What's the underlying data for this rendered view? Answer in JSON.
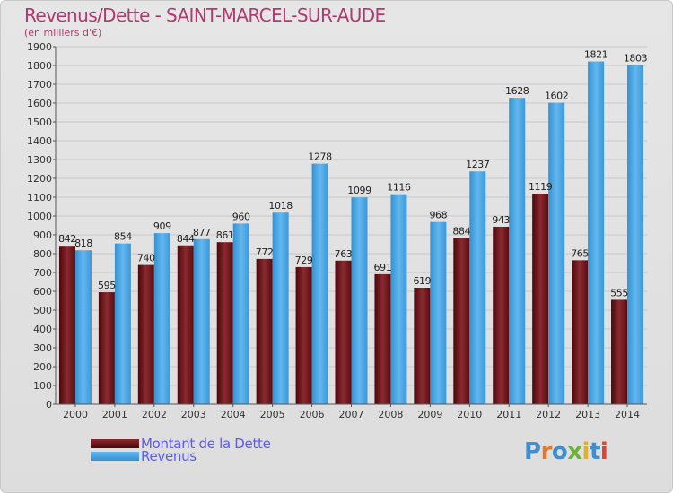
{
  "header": {
    "title": "Revenus/Dette - SAINT-MARCEL-SUR-AUDE",
    "subtitle": "(en milliers d'€)"
  },
  "legend": {
    "debt_label": "Montant de la Dette",
    "revenue_label": "Revenus"
  },
  "logo": {
    "text": "Proxiti"
  },
  "colors": {
    "debt": "#6e0f14",
    "debt_light": "#9a3a3e",
    "revenue": "#3f9fe0",
    "revenue_light": "#5cb3ee",
    "title": "#b03a70",
    "legend_text": "#5a5aff",
    "grid": "#c8c8c8"
  },
  "chart_data": {
    "type": "bar",
    "title": "Revenus/Dette - SAINT-MARCEL-SUR-AUDE",
    "ylabel": "(en milliers d'€)",
    "categories": [
      "2000",
      "2001",
      "2002",
      "2003",
      "2004",
      "2005",
      "2006",
      "2007",
      "2008",
      "2009",
      "2010",
      "2011",
      "2012",
      "2013",
      "2014"
    ],
    "series": [
      {
        "name": "Montant de la Dette",
        "values": [
          842,
          595,
          740,
          844,
          861,
          772,
          729,
          763,
          691,
          619,
          884,
          943,
          1119,
          765,
          555
        ]
      },
      {
        "name": "Revenus",
        "values": [
          818,
          854,
          909,
          877,
          960,
          1018,
          1278,
          1099,
          1116,
          968,
          1237,
          1628,
          1602,
          1821,
          1803
        ]
      }
    ],
    "ylim": [
      0,
      1900
    ],
    "yticks": [
      0,
      100,
      200,
      300,
      400,
      500,
      600,
      700,
      800,
      900,
      1000,
      1100,
      1200,
      1300,
      1400,
      1500,
      1600,
      1700,
      1800,
      1900
    ],
    "grid": true,
    "legend_position": "bottom-left"
  }
}
